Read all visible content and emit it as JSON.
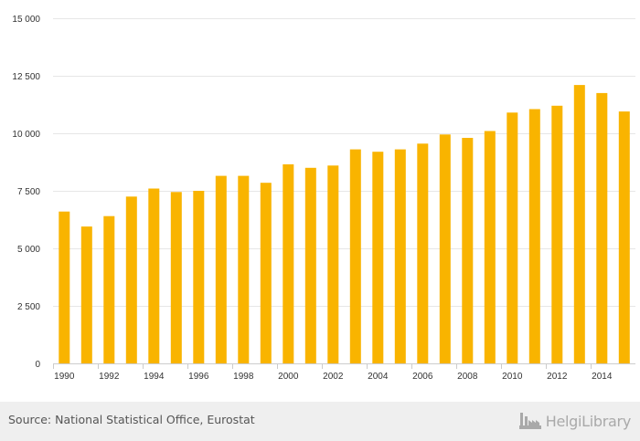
{
  "chart_data": {
    "type": "bar",
    "x": [
      1990,
      1991,
      1992,
      1993,
      1994,
      1995,
      1996,
      1997,
      1998,
      1999,
      2000,
      2001,
      2002,
      2003,
      2004,
      2005,
      2006,
      2007,
      2008,
      2009,
      2010,
      2011,
      2012,
      2013,
      2014,
      2015
    ],
    "values": [
      6600,
      5950,
      6400,
      7250,
      7600,
      7450,
      7500,
      8150,
      8150,
      7850,
      8650,
      8500,
      8600,
      9300,
      9200,
      9300,
      9550,
      9950,
      9800,
      10100,
      10900,
      11050,
      11200,
      12100,
      11750,
      10950
    ],
    "x_tick_labels": [
      "1990",
      "1992",
      "1994",
      "1996",
      "1998",
      "2000",
      "2002",
      "2004",
      "2006",
      "2008",
      "2010",
      "2012",
      "2014"
    ],
    "y_tick_labels": [
      "0",
      "2 500",
      "5 000",
      "7 500",
      "10 000",
      "12 500",
      "15 000"
    ],
    "y_ticks": [
      0,
      2500,
      5000,
      7500,
      10000,
      12500,
      15000
    ],
    "ylim": [
      0,
      15000
    ],
    "bar_color": "#f9b400",
    "grid": true,
    "title": "",
    "xlabel": "",
    "ylabel": ""
  },
  "footer": {
    "source": "Source: National Statistical Office, Eurostat",
    "logo_text": "HelgiLibrary",
    "logo_icon": "factory-icon"
  }
}
